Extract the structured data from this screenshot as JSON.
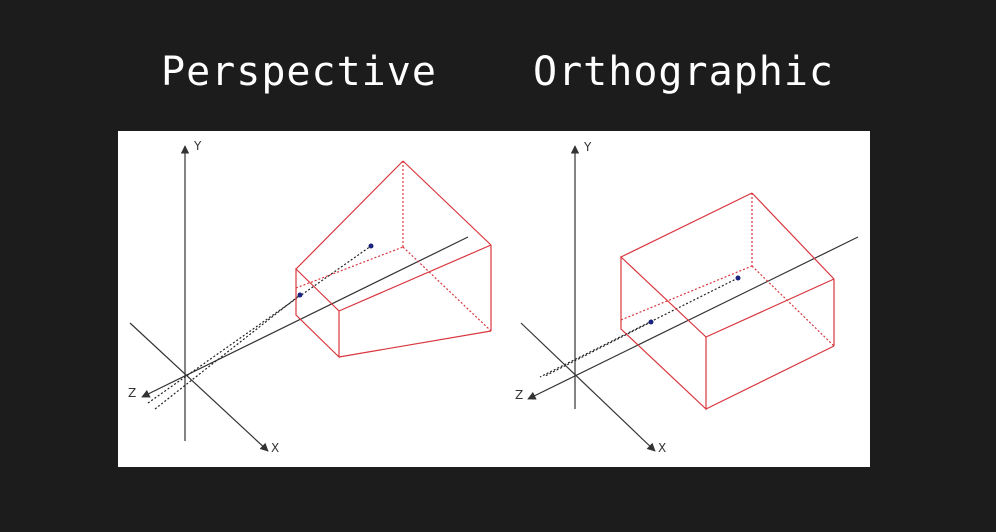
{
  "titles": {
    "left": "Perspective",
    "right": "Orthographic"
  },
  "colors": {
    "background": "#1c1c1c",
    "panel": "#ffffff",
    "frustum": "#d9363e",
    "axis": "#333333",
    "point": "#1a237e"
  },
  "axes": {
    "y_label": "Y",
    "x_label": "X",
    "z_label": "Z"
  }
}
